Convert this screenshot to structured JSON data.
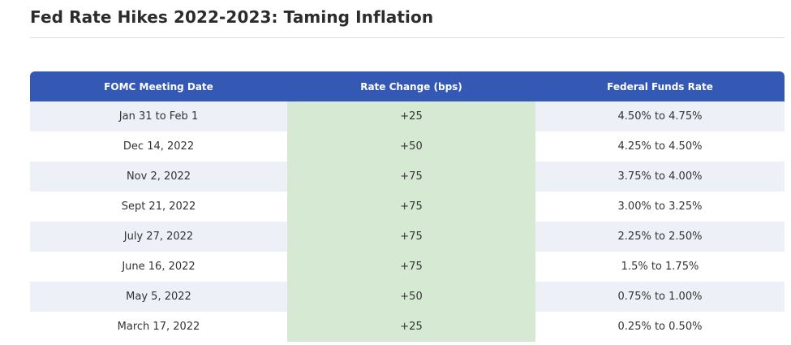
{
  "page": {
    "title": "Fed Rate Hikes 2022-2023: Taming Inflation"
  },
  "table": {
    "headers": [
      "FOMC Meeting Date",
      "Rate Change (bps)",
      "Federal Funds Rate"
    ],
    "rows": [
      {
        "date": "Jan 31 to Feb 1",
        "change": "+25",
        "rate": "4.50% to 4.75%"
      },
      {
        "date": "Dec 14, 2022",
        "change": "+50",
        "rate": "4.25% to 4.50%"
      },
      {
        "date": "Nov 2, 2022",
        "change": "+75",
        "rate": "3.75% to 4.00%"
      },
      {
        "date": "Sept 21, 2022",
        "change": "+75",
        "rate": "3.00% to 3.25%"
      },
      {
        "date": "July 27, 2022",
        "change": "+75",
        "rate": "2.25% to 2.50%"
      },
      {
        "date": "June 16, 2022",
        "change": "+75",
        "rate": "1.5% to 1.75%"
      },
      {
        "date": "May 5, 2022",
        "change": "+50",
        "rate": "0.75% to 1.00%"
      },
      {
        "date": "March 17, 2022",
        "change": "+25",
        "rate": "0.25% to 0.50%"
      }
    ]
  },
  "colors": {
    "header_bg": "#3459b4",
    "row_stripe": "#eef0f7",
    "change_column_bg": "#d6ead3"
  }
}
